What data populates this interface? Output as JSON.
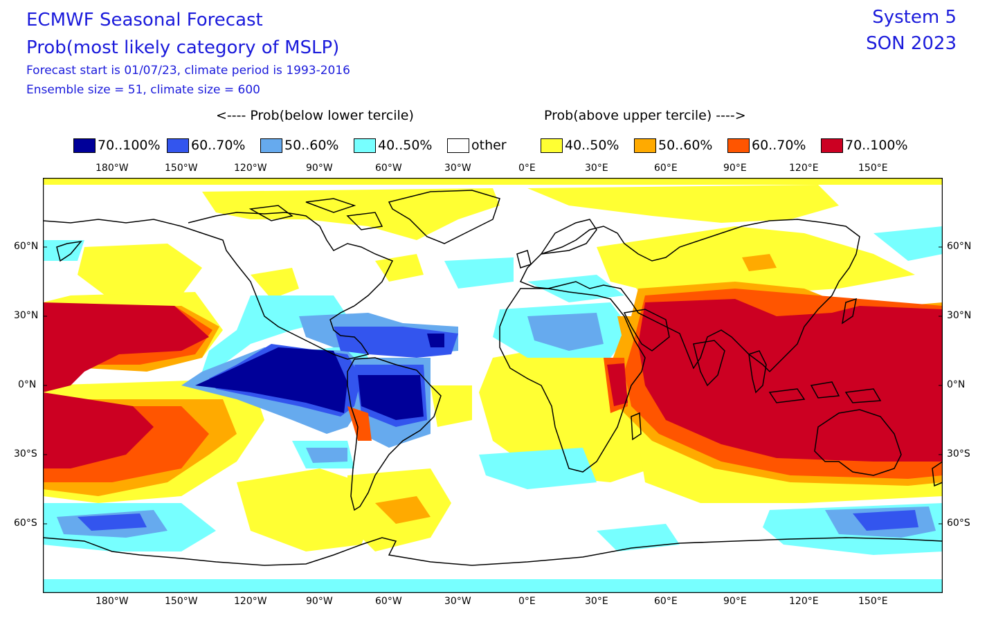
{
  "header": {
    "title": "ECMWF Seasonal Forecast",
    "subtitle": "Prob(most likely category of MSLP)",
    "line3": "Forecast start is 01/07/23, climate period is 1993-2016",
    "line4": "Ensemble size = 51, climate size = 600",
    "system": "System 5",
    "season": "SON 2023"
  },
  "legend": {
    "below_caption": "<---- Prob(below lower tercile)",
    "above_caption": "Prob(above upper tercile) ---->",
    "items": [
      {
        "label": "70..100%",
        "color": "#000099"
      },
      {
        "label": "60..70%",
        "color": "#3355ee"
      },
      {
        "label": "50..60%",
        "color": "#66aaee"
      },
      {
        "label": "40..50%",
        "color": "#77ffff"
      },
      {
        "label": "other",
        "color": "#ffffff"
      },
      {
        "label": "40..50%",
        "color": "#ffff33"
      },
      {
        "label": "50..60%",
        "color": "#ffaa00"
      },
      {
        "label": "60..70%",
        "color": "#ff5500"
      },
      {
        "label": "70..100%",
        "color": "#cc0022"
      }
    ]
  },
  "axes": {
    "lon_labels": [
      "180°W",
      "150°W",
      "120°W",
      "90°W",
      "60°W",
      "30°W",
      "0°E",
      "30°E",
      "60°E",
      "90°E",
      "120°E",
      "150°E"
    ],
    "lat_labels": [
      "60°N",
      "30°N",
      "0°N",
      "30°S",
      "60°S"
    ]
  },
  "map": {
    "ocean_color": "#ffffff",
    "coast_color": "#000000"
  }
}
